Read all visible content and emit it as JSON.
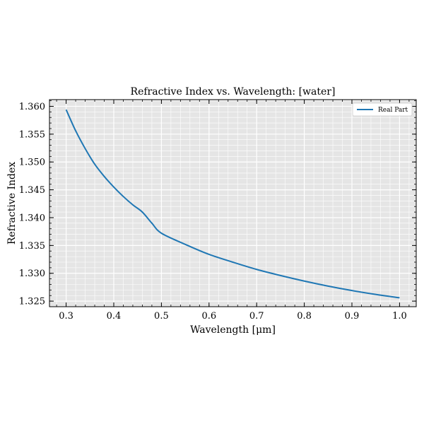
{
  "chart_data": {
    "type": "line",
    "title": "Refractive Index vs. Wavelength: [water]",
    "xlabel": "Wavelength [μm]",
    "ylabel": "Refractive Index",
    "xlim": [
      0.265,
      1.035
    ],
    "ylim": [
      1.324,
      1.3612
    ],
    "xticks": [
      0.3,
      0.4,
      0.5,
      0.6,
      0.7,
      0.8,
      0.9,
      1.0
    ],
    "xtick_labels": [
      "0.3",
      "0.4",
      "0.5",
      "0.6",
      "0.7",
      "0.8",
      "0.9",
      "1.0"
    ],
    "yticks": [
      1.325,
      1.33,
      1.335,
      1.34,
      1.345,
      1.35,
      1.355,
      1.36
    ],
    "ytick_labels": [
      "1.325",
      "1.330",
      "1.335",
      "1.340",
      "1.345",
      "1.350",
      "1.355",
      "1.360"
    ],
    "grid": true,
    "legend_position": "top-right",
    "series": [
      {
        "name": "Real Part",
        "color": "#1f77b4",
        "x": [
          0.3,
          0.32,
          0.34,
          0.36,
          0.38,
          0.4,
          0.42,
          0.44,
          0.46,
          0.48,
          0.5,
          0.55,
          0.6,
          0.65,
          0.7,
          0.75,
          0.8,
          0.85,
          0.9,
          0.95,
          1.0
        ],
        "y": [
          1.3594,
          1.3556,
          1.3524,
          1.3496,
          1.3474,
          1.3455,
          1.3438,
          1.3423,
          1.341,
          1.339,
          1.3372,
          1.3352,
          1.3334,
          1.332,
          1.3307,
          1.3296,
          1.3286,
          1.3277,
          1.3269,
          1.3262,
          1.3256
        ]
      }
    ]
  }
}
